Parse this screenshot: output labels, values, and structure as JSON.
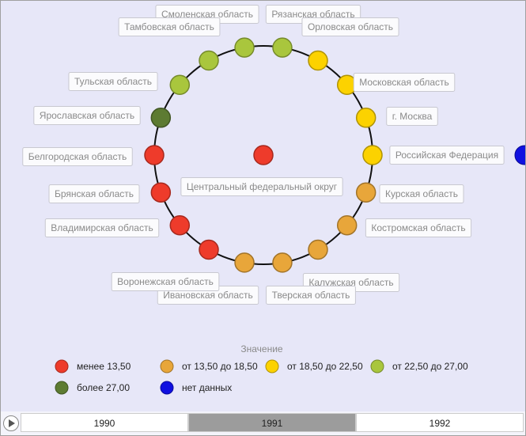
{
  "center": {
    "label": "Центральный федеральный округ",
    "color": "#ee3b2b"
  },
  "nodes": [
    {
      "label": "Смоленская область",
      "color": "#a9c63d"
    },
    {
      "label": "Рязанская область",
      "color": "#a9c63d"
    },
    {
      "label": "Орловская область",
      "color": "#fcd200"
    },
    {
      "label": "Московская область",
      "color": "#fcd200"
    },
    {
      "label": "г. Москва",
      "color": "#fcd200"
    },
    {
      "label": "Российская Федерация",
      "color": "#fcd200"
    },
    {
      "label": "Курская область",
      "color": "#e8a63a"
    },
    {
      "label": "Костромская область",
      "color": "#e8a63a"
    },
    {
      "label": "Калужская область",
      "color": "#e8a63a"
    },
    {
      "label": "Тверская область",
      "color": "#e8a63a"
    },
    {
      "label": "Ивановская область",
      "color": "#e8a63a"
    },
    {
      "label": "Воронежская область",
      "color": "#ee3b2b"
    },
    {
      "label": "Владимирская область",
      "color": "#ee3b2b"
    },
    {
      "label": "Брянская область",
      "color": "#ee3b2b"
    },
    {
      "label": "Белгородская область",
      "color": "#ee3b2b"
    },
    {
      "label": "Ярославская область",
      "color": "#5d7b32"
    },
    {
      "label": "Тульская область",
      "color": "#a9c63d"
    },
    {
      "label": "Тамбовская область",
      "color": "#a9c63d"
    }
  ],
  "legend": {
    "title": "Значение",
    "items": [
      {
        "label": "менее 13,50",
        "color": "#ee3b2b"
      },
      {
        "label": "от 13,50 до 18,50",
        "color": "#e8a63a"
      },
      {
        "label": "от 18,50 до 22,50",
        "color": "#fcd200"
      },
      {
        "label": "от 22,50 до 27,00",
        "color": "#a9c63d"
      },
      {
        "label": "более 27,00",
        "color": "#5d7b32"
      },
      {
        "label": "нет данных",
        "color": "#1010e0"
      }
    ]
  },
  "timeline": {
    "years": [
      "1990",
      "1991",
      "1992"
    ],
    "selected_index": 1
  }
}
